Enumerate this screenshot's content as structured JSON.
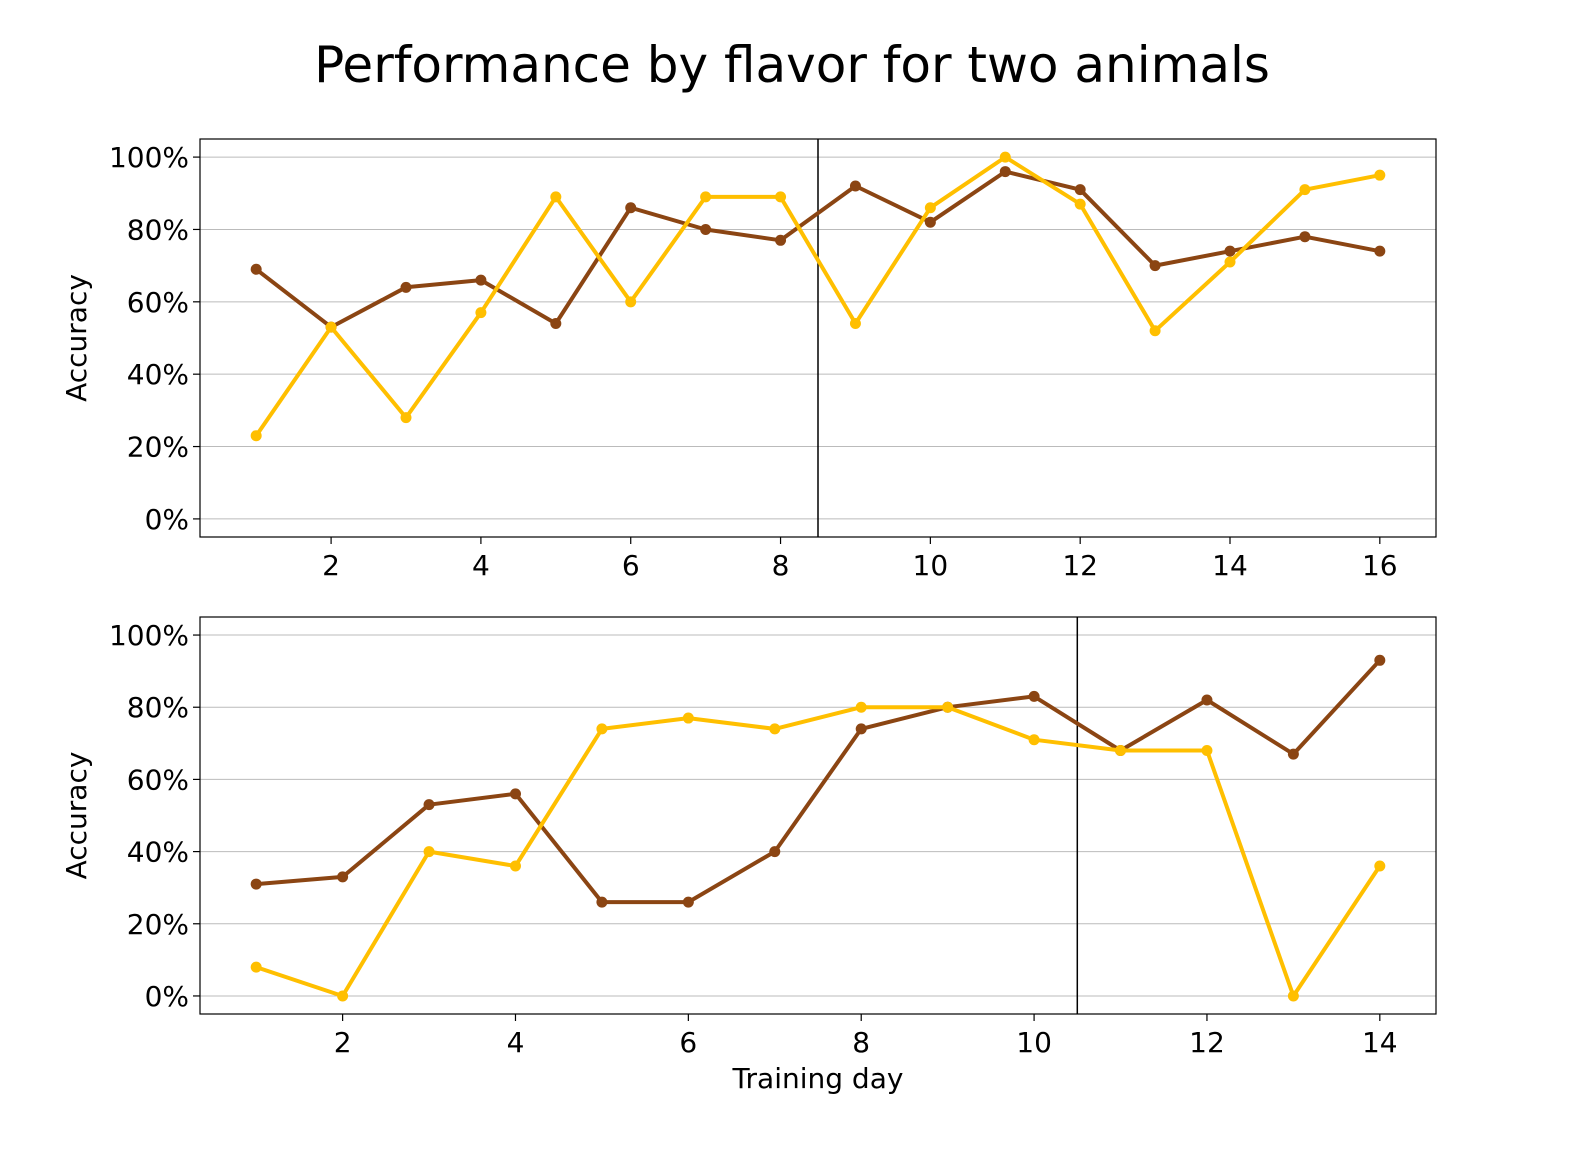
{
  "figure": {
    "title": "Performance by flavor for two animals"
  },
  "colors": {
    "series_a": "#8B4513",
    "series_b": "#FFBF00",
    "grid": "#bbbbbb",
    "divider": "#000000"
  },
  "chart_data": [
    {
      "type": "line",
      "ylabel": "Accuracy",
      "xlabel": "",
      "xlim": [
        0.25,
        16.75
      ],
      "ylim": [
        -5,
        105
      ],
      "xticks": [
        2,
        4,
        6,
        8,
        10,
        12,
        14,
        16
      ],
      "xtick_labels": [
        "2",
        "4",
        "6",
        "8",
        "10",
        "12",
        "14",
        "16"
      ],
      "yticks": [
        0,
        20,
        40,
        60,
        80,
        100
      ],
      "ytick_labels": [
        "0%",
        "20%",
        "40%",
        "60%",
        "80%",
        "100%"
      ],
      "grid": "y",
      "vline": 8.5,
      "x": [
        1,
        2,
        3,
        4,
        5,
        6,
        7,
        8,
        9,
        10,
        11,
        12,
        13,
        14,
        15,
        16
      ],
      "series": [
        {
          "color": "#8B4513",
          "values": [
            69,
            53,
            64,
            66,
            54,
            86,
            80,
            77,
            92,
            82,
            96,
            91,
            70,
            74,
            78,
            74
          ]
        },
        {
          "color": "#FFBF00",
          "values": [
            23,
            53,
            28,
            57,
            89,
            60,
            89,
            89,
            54,
            86,
            100,
            87,
            52,
            71,
            91,
            95
          ]
        }
      ]
    },
    {
      "type": "line",
      "ylabel": "Accuracy",
      "xlabel": "Training day",
      "xlim": [
        0.35,
        14.65
      ],
      "ylim": [
        -5,
        105
      ],
      "xticks": [
        2,
        4,
        6,
        8,
        10,
        12,
        14
      ],
      "xtick_labels": [
        "2",
        "4",
        "6",
        "8",
        "10",
        "12",
        "14"
      ],
      "yticks": [
        0,
        20,
        40,
        60,
        80,
        100
      ],
      "ytick_labels": [
        "0%",
        "20%",
        "40%",
        "60%",
        "80%",
        "100%"
      ],
      "grid": "y",
      "vline": 10.5,
      "x": [
        1,
        2,
        3,
        4,
        5,
        6,
        7,
        8,
        9,
        10,
        11,
        12,
        13,
        14
      ],
      "series": [
        {
          "color": "#8B4513",
          "values": [
            31,
            33,
            53,
            56,
            26,
            26,
            40,
            74,
            80,
            83,
            68,
            82,
            67,
            93
          ]
        },
        {
          "color": "#FFBF00",
          "values": [
            8,
            0,
            40,
            36,
            74,
            77,
            74,
            80,
            80,
            71,
            68,
            68,
            0,
            36
          ]
        }
      ]
    }
  ]
}
